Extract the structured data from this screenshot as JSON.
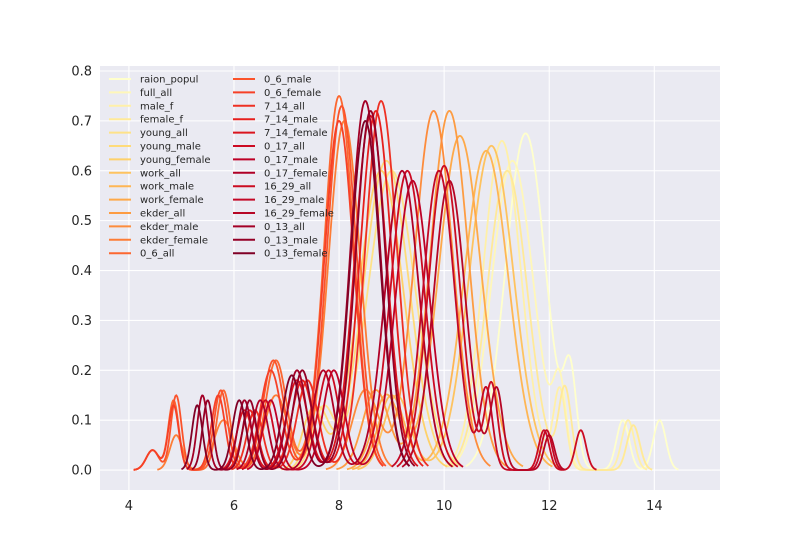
{
  "chart_data": {
    "type": "line",
    "title": "",
    "xlabel": "",
    "ylabel": "",
    "xlim": [
      3.45,
      15.25
    ],
    "ylim": [
      -0.04,
      0.81
    ],
    "x_ticks": [
      4,
      6,
      8,
      10,
      12,
      14
    ],
    "y_ticks": [
      0.0,
      0.1,
      0.2,
      0.3,
      0.4,
      0.5,
      0.6,
      0.7,
      0.8
    ],
    "grid": true,
    "legend_placement": "upper-left, 2 columns",
    "background": "#EAEAF2",
    "colormap": "YlOrRd",
    "series": [
      {
        "name": "raion_popul",
        "color": "#ffffcc",
        "peaks": [
          [
            11.55,
            0.675,
            0.38
          ],
          [
            12.4,
            0.17,
            0.12
          ],
          [
            13.4,
            0.1,
            0.12
          ],
          [
            14.1,
            0.1,
            0.12
          ]
        ]
      },
      {
        "name": "full_all",
        "color": "#fff7b9",
        "peaks": [
          [
            11.3,
            0.62,
            0.4
          ],
          [
            12.2,
            0.15,
            0.12
          ],
          [
            13.6,
            0.09,
            0.12
          ]
        ]
      },
      {
        "name": "male_f",
        "color": "#fff0a8",
        "peaks": [
          [
            11.1,
            0.66,
            0.36
          ],
          [
            12.2,
            0.16,
            0.12
          ],
          [
            13.5,
            0.1,
            0.12
          ]
        ]
      },
      {
        "name": "female_f",
        "color": "#ffe998",
        "peaks": [
          [
            11.2,
            0.6,
            0.38
          ],
          [
            12.3,
            0.16,
            0.12
          ],
          [
            13.6,
            0.09,
            0.12
          ]
        ]
      },
      {
        "name": "young_all",
        "color": "#fee288",
        "peaks": [
          [
            9.0,
            0.6,
            0.45
          ],
          [
            7.7,
            0.12,
            0.2
          ]
        ]
      },
      {
        "name": "young_male",
        "color": "#fedb79",
        "peaks": [
          [
            8.9,
            0.62,
            0.43
          ],
          [
            7.6,
            0.12,
            0.2
          ]
        ]
      },
      {
        "name": "young_female",
        "color": "#fed16a",
        "peaks": [
          [
            8.8,
            0.6,
            0.42
          ],
          [
            7.5,
            0.12,
            0.2
          ]
        ]
      },
      {
        "name": "work_all",
        "color": "#fec35f",
        "peaks": [
          [
            10.9,
            0.65,
            0.42
          ],
          [
            9.1,
            0.15,
            0.25
          ]
        ]
      },
      {
        "name": "work_male",
        "color": "#feb654",
        "peaks": [
          [
            10.8,
            0.64,
            0.42
          ],
          [
            9.0,
            0.15,
            0.25
          ]
        ]
      },
      {
        "name": "work_female",
        "color": "#fea949",
        "peaks": [
          [
            10.3,
            0.67,
            0.4
          ],
          [
            8.9,
            0.15,
            0.25
          ]
        ]
      },
      {
        "name": "ekder_all",
        "color": "#fd9c42",
        "peaks": [
          [
            10.1,
            0.72,
            0.36
          ],
          [
            8.7,
            0.16,
            0.25
          ]
        ]
      },
      {
        "name": "ekder_male",
        "color": "#fd8c3c",
        "peaks": [
          [
            9.8,
            0.72,
            0.36
          ],
          [
            8.5,
            0.16,
            0.25
          ]
        ]
      },
      {
        "name": "ekder_female",
        "color": "#fd7d36",
        "peaks": [
          [
            8.1,
            0.7,
            0.3
          ],
          [
            6.8,
            0.15,
            0.22
          ],
          [
            5.8,
            0.1,
            0.18
          ],
          [
            4.9,
            0.07,
            0.12
          ]
        ]
      },
      {
        "name": "0_6_all",
        "color": "#fc6730",
        "peaks": [
          [
            8.0,
            0.75,
            0.28
          ],
          [
            6.8,
            0.22,
            0.2
          ],
          [
            5.8,
            0.16,
            0.13
          ],
          [
            4.85,
            0.14,
            0.1
          ],
          [
            4.45,
            0.04,
            0.12
          ]
        ]
      },
      {
        "name": "0_6_male",
        "color": "#fb532b",
        "peaks": [
          [
            8.05,
            0.73,
            0.28
          ],
          [
            6.75,
            0.22,
            0.2
          ],
          [
            5.75,
            0.16,
            0.13
          ],
          [
            4.9,
            0.15,
            0.1
          ],
          [
            4.45,
            0.04,
            0.12
          ]
        ]
      },
      {
        "name": "0_6_female",
        "color": "#f64027",
        "peaks": [
          [
            8.0,
            0.7,
            0.28
          ],
          [
            6.7,
            0.2,
            0.2
          ],
          [
            5.7,
            0.15,
            0.13
          ],
          [
            4.85,
            0.13,
            0.1
          ],
          [
            4.45,
            0.04,
            0.12
          ]
        ]
      },
      {
        "name": "7_14_all",
        "color": "#ee3023",
        "peaks": [
          [
            8.8,
            0.74,
            0.3
          ],
          [
            7.4,
            0.18,
            0.2
          ],
          [
            6.4,
            0.12,
            0.15
          ]
        ]
      },
      {
        "name": "7_14_male",
        "color": "#e61f1d",
        "peaks": [
          [
            8.7,
            0.72,
            0.3
          ],
          [
            7.3,
            0.18,
            0.2
          ],
          [
            6.3,
            0.12,
            0.15
          ]
        ]
      },
      {
        "name": "7_14_female",
        "color": "#da141e",
        "peaks": [
          [
            8.6,
            0.71,
            0.3
          ],
          [
            7.2,
            0.18,
            0.2
          ],
          [
            6.2,
            0.12,
            0.15
          ]
        ]
      },
      {
        "name": "0_17_all",
        "color": "#cc0a22",
        "peaks": [
          [
            9.3,
            0.6,
            0.32
          ],
          [
            7.8,
            0.2,
            0.2
          ],
          [
            6.6,
            0.14,
            0.15
          ]
        ]
      },
      {
        "name": "0_17_male",
        "color": "#bd0026",
        "peaks": [
          [
            9.4,
            0.58,
            0.32
          ],
          [
            7.9,
            0.2,
            0.2
          ],
          [
            6.7,
            0.14,
            0.15
          ]
        ]
      },
      {
        "name": "0_17_female",
        "color": "#b00026",
        "peaks": [
          [
            9.2,
            0.6,
            0.32
          ],
          [
            7.7,
            0.2,
            0.2
          ],
          [
            6.5,
            0.14,
            0.15
          ]
        ]
      },
      {
        "name": "16_29_all",
        "color": "#cb0c21",
        "peaks": [
          [
            10.0,
            0.61,
            0.3
          ],
          [
            10.9,
            0.17,
            0.12
          ],
          [
            11.9,
            0.08,
            0.1
          ],
          [
            12.6,
            0.08,
            0.1
          ]
        ]
      },
      {
        "name": "16_29_male",
        "color": "#c30826",
        "peaks": [
          [
            9.9,
            0.6,
            0.3
          ],
          [
            10.8,
            0.16,
            0.12
          ],
          [
            11.95,
            0.08,
            0.1
          ]
        ]
      },
      {
        "name": "16_29_female",
        "color": "#b60625",
        "peaks": [
          [
            10.1,
            0.58,
            0.3
          ],
          [
            11.0,
            0.16,
            0.12
          ],
          [
            12.0,
            0.07,
            0.1
          ]
        ]
      },
      {
        "name": "0_13_all",
        "color": "#a30026",
        "peaks": [
          [
            8.5,
            0.74,
            0.28
          ],
          [
            7.2,
            0.2,
            0.18
          ],
          [
            6.2,
            0.14,
            0.13
          ],
          [
            5.4,
            0.15,
            0.1
          ]
        ]
      },
      {
        "name": "0_13_male",
        "color": "#940026",
        "peaks": [
          [
            8.6,
            0.72,
            0.28
          ],
          [
            7.3,
            0.2,
            0.18
          ],
          [
            6.3,
            0.14,
            0.13
          ],
          [
            5.5,
            0.14,
            0.1
          ]
        ]
      },
      {
        "name": "0_13_female",
        "color": "#800026",
        "peaks": [
          [
            8.5,
            0.7,
            0.28
          ],
          [
            7.1,
            0.19,
            0.18
          ],
          [
            6.1,
            0.14,
            0.13
          ],
          [
            5.3,
            0.13,
            0.1
          ]
        ]
      }
    ]
  }
}
